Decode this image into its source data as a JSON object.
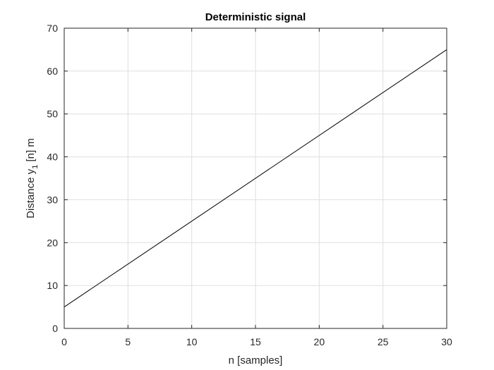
{
  "chart_data": {
    "type": "line",
    "title": "Deterministic signal",
    "xlabel": "n [samples]",
    "ylabel": {
      "main": "Distance y",
      "subscript": "1",
      "suffix": "[n] m"
    },
    "xlim": [
      0,
      30
    ],
    "ylim": [
      0,
      70
    ],
    "xticks": [
      0,
      5,
      10,
      15,
      20,
      25,
      30
    ],
    "yticks": [
      0,
      10,
      20,
      30,
      40,
      50,
      60,
      70
    ],
    "grid": true,
    "series": [
      {
        "x": [
          0,
          30
        ],
        "y": [
          5,
          65
        ],
        "color": "#000000"
      }
    ]
  }
}
